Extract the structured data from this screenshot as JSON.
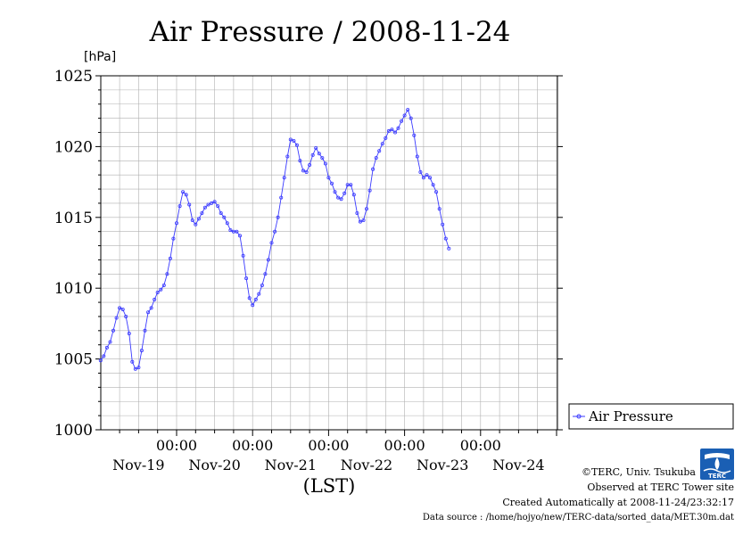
{
  "title": "Air Pressure / 2008-11-24",
  "unit": "[hPa]",
  "xlabel": "(LST)",
  "legend_label": "Air Pressure",
  "credits": {
    "copyright": "©TERC, Univ. Tsukuba",
    "observed": "Observed at TERC Tower site",
    "created": "Created Automatically at 2008-11-24/23:32:17",
    "source": "Data source : /home/hojyo/new/TERC-data/sorted_data/MET.30m.dat",
    "logo_text": "TERC"
  },
  "colors": {
    "series": "#3a3aff",
    "grid": "#b0b0b0",
    "logo": "#1a5fb4"
  },
  "chart_data": {
    "type": "line",
    "title": "Air Pressure / 2008-11-24",
    "ylabel": "[hPa]",
    "xlabel": "(LST)",
    "ylim": [
      1000,
      1025
    ],
    "yticks": [
      1000,
      1005,
      1010,
      1015,
      1020,
      1025
    ],
    "xlim_hours": [
      0,
      144
    ],
    "xtick_labels": [
      "00:00",
      "00:00",
      "00:00",
      "00:00",
      "00:00"
    ],
    "date_labels": [
      "Nov-19",
      "Nov-20",
      "Nov-21",
      "Nov-22",
      "Nov-23",
      "Nov-24"
    ],
    "grid": true,
    "legend": "right",
    "series": [
      {
        "name": "Air Pressure",
        "points": [
          [
            0,
            1004.9
          ],
          [
            1,
            1005.2
          ],
          [
            2,
            1005.8
          ],
          [
            3,
            1006.2
          ],
          [
            4,
            1007.0
          ],
          [
            5,
            1007.9
          ],
          [
            6,
            1008.6
          ],
          [
            7,
            1008.5
          ],
          [
            8,
            1008.0
          ],
          [
            9,
            1006.8
          ],
          [
            10,
            1004.8
          ],
          [
            11,
            1004.3
          ],
          [
            12,
            1004.4
          ],
          [
            13,
            1005.6
          ],
          [
            14,
            1007.0
          ],
          [
            15,
            1008.3
          ],
          [
            16,
            1008.6
          ],
          [
            17,
            1009.2
          ],
          [
            18,
            1009.7
          ],
          [
            19,
            1009.9
          ],
          [
            20,
            1010.2
          ],
          [
            21,
            1011.0
          ],
          [
            22,
            1012.1
          ],
          [
            23,
            1013.5
          ],
          [
            24,
            1014.6
          ],
          [
            25,
            1015.8
          ],
          [
            26,
            1016.8
          ],
          [
            27,
            1016.6
          ],
          [
            28,
            1015.9
          ],
          [
            29,
            1014.8
          ],
          [
            30,
            1014.5
          ],
          [
            31,
            1014.9
          ],
          [
            32,
            1015.3
          ],
          [
            33,
            1015.7
          ],
          [
            34,
            1015.9
          ],
          [
            35,
            1016.0
          ],
          [
            36,
            1016.1
          ],
          [
            37,
            1015.8
          ],
          [
            38,
            1015.3
          ],
          [
            39,
            1015.0
          ],
          [
            40,
            1014.6
          ],
          [
            41,
            1014.1
          ],
          [
            42,
            1014.0
          ],
          [
            43,
            1014.0
          ],
          [
            44,
            1013.7
          ],
          [
            45,
            1012.3
          ],
          [
            46,
            1010.7
          ],
          [
            47,
            1009.3
          ],
          [
            48,
            1008.8
          ],
          [
            49,
            1009.2
          ],
          [
            50,
            1009.6
          ],
          [
            51,
            1010.2
          ],
          [
            52,
            1011.0
          ],
          [
            53,
            1012.0
          ],
          [
            54,
            1013.2
          ],
          [
            55,
            1014.0
          ],
          [
            56,
            1015.0
          ],
          [
            57,
            1016.4
          ],
          [
            58,
            1017.8
          ],
          [
            59,
            1019.3
          ],
          [
            60,
            1020.5
          ],
          [
            61,
            1020.4
          ],
          [
            62,
            1020.1
          ],
          [
            63,
            1019.0
          ],
          [
            64,
            1018.3
          ],
          [
            65,
            1018.2
          ],
          [
            66,
            1018.7
          ],
          [
            67,
            1019.4
          ],
          [
            68,
            1019.9
          ],
          [
            69,
            1019.5
          ],
          [
            70,
            1019.2
          ],
          [
            71,
            1018.8
          ],
          [
            72,
            1017.8
          ],
          [
            73,
            1017.4
          ],
          [
            74,
            1016.8
          ],
          [
            75,
            1016.4
          ],
          [
            76,
            1016.3
          ],
          [
            77,
            1016.7
          ],
          [
            78,
            1017.3
          ],
          [
            79,
            1017.3
          ],
          [
            80,
            1016.6
          ],
          [
            81,
            1015.3
          ],
          [
            82,
            1014.7
          ],
          [
            83,
            1014.8
          ],
          [
            84,
            1015.6
          ],
          [
            85,
            1016.9
          ],
          [
            86,
            1018.4
          ],
          [
            87,
            1019.2
          ],
          [
            88,
            1019.7
          ],
          [
            89,
            1020.2
          ],
          [
            90,
            1020.6
          ],
          [
            91,
            1021.1
          ],
          [
            92,
            1021.2
          ],
          [
            93,
            1021.0
          ],
          [
            94,
            1021.3
          ],
          [
            95,
            1021.8
          ],
          [
            96,
            1022.2
          ],
          [
            97,
            1022.6
          ],
          [
            98,
            1022.0
          ],
          [
            99,
            1020.8
          ],
          [
            100,
            1019.3
          ],
          [
            101,
            1018.2
          ],
          [
            102,
            1017.8
          ],
          [
            103,
            1018.0
          ],
          [
            104,
            1017.8
          ],
          [
            105,
            1017.3
          ],
          [
            106,
            1016.8
          ],
          [
            107,
            1015.6
          ],
          [
            108,
            1014.5
          ],
          [
            109,
            1013.5
          ],
          [
            110,
            1012.8
          ]
        ]
      }
    ]
  }
}
